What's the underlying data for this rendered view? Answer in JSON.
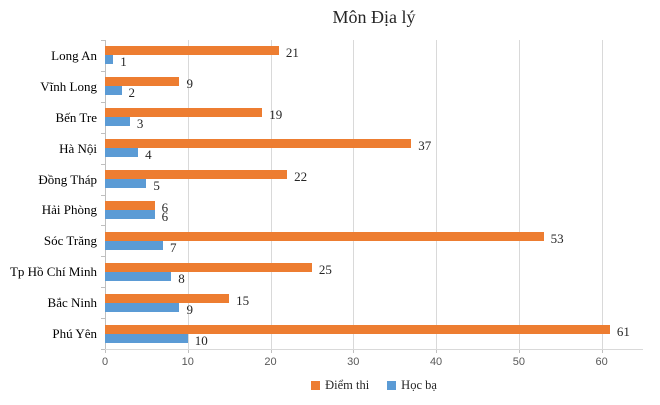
{
  "chart_data": {
    "type": "bar",
    "orientation": "horizontal",
    "title": "Môn Địa lý",
    "categories": [
      "Long An",
      "Vĩnh Long",
      "Bến Tre",
      "Hà Nội",
      "Đồng Tháp",
      "Hải Phòng",
      "Sóc Trăng",
      "Tp Hồ Chí Minh",
      "Bắc Ninh",
      "Phú Yên"
    ],
    "series": [
      {
        "name": "Điểm thi",
        "color": "#ED7D31",
        "values": [
          21,
          9,
          19,
          37,
          22,
          6,
          53,
          25,
          15,
          61
        ]
      },
      {
        "name": "Học bạ",
        "color": "#5B9BD5",
        "values": [
          1,
          2,
          3,
          4,
          5,
          6,
          7,
          8,
          9,
          10
        ]
      }
    ],
    "x_ticks": [
      0,
      10,
      20,
      30,
      40,
      50,
      60
    ],
    "xlim": [
      0,
      65
    ],
    "grid": "vertical-gridlines-on",
    "legend_position": "bottom",
    "data_labels": true
  },
  "colors": {
    "gridline": "#D9D9D9",
    "axis": "#BFBFBF",
    "tick_label_text": "#595959",
    "label_text": "#262626"
  }
}
